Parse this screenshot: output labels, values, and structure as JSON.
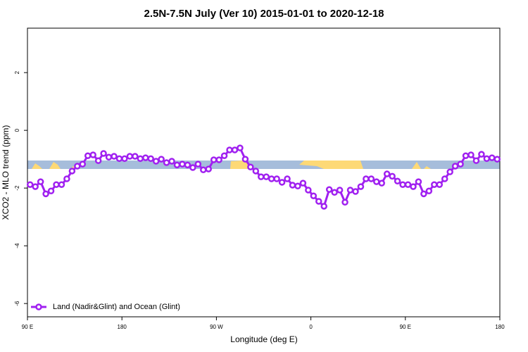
{
  "chart_data": {
    "type": "line",
    "title": "2.5N-7.5N July (Ver 10)   2015-01-01 to 2020-12-18",
    "x_label": "Longitude (deg E)",
    "y_label": "XCO2 - MLO trend (ppm)",
    "xlim": [
      90,
      540
    ],
    "ylim": [
      -6.46,
      3.54
    ],
    "xticks": [
      {
        "value": 90,
        "label": "90 E"
      },
      180,
      {
        "value": 270,
        "label": "90 W"
      },
      {
        "value": 360,
        "label": "0"
      },
      {
        "value": 450,
        "label": "90 E"
      },
      {
        "value": 540,
        "label": "180"
      }
    ],
    "yticks": [
      -6,
      -4,
      -2,
      0,
      2
    ],
    "legend": "bottom-left",
    "series": [
      {
        "name": "Land (Nadir&Glint) and Ocean (Glint)",
        "color": "#a020f0",
        "x": [
          92.5,
          97.5,
          102.5,
          107.5,
          112.5,
          117.5,
          122.5,
          127.5,
          132.5,
          137.5,
          142.5,
          147.5,
          152.5,
          157.5,
          162.5,
          167.5,
          172.5,
          177.5,
          182.5,
          187.5,
          192.5,
          197.5,
          202.5,
          207.5,
          212.5,
          217.5,
          222.5,
          227.5,
          232.5,
          237.5,
          242.5,
          247.5,
          252.5,
          257.5,
          262.5,
          267.5,
          272.5,
          277.5,
          282.5,
          287.5,
          292.5,
          297.5,
          302.5,
          307.5,
          312.5,
          317.5,
          322.5,
          327.5,
          332.5,
          337.5,
          342.5,
          347.5,
          352.5,
          357.5,
          362.5,
          367.5,
          372.5,
          377.5,
          382.5,
          387.5,
          392.5,
          397.5,
          402.5,
          407.5,
          412.5,
          417.5,
          422.5,
          427.5,
          432.5,
          437.5,
          442.5,
          447.5,
          452.5,
          457.5,
          462.5,
          467.5,
          472.5,
          477.5,
          482.5,
          487.5,
          492.5,
          497.5,
          502.5,
          507.5,
          512.5,
          517.5,
          522.5,
          527.5,
          532.5,
          537.5
        ],
        "values": [
          -1.88,
          -1.95,
          -1.78,
          -2.2,
          -2.1,
          -1.88,
          -1.88,
          -1.68,
          -1.41,
          -1.24,
          -1.17,
          -0.88,
          -0.85,
          -1.05,
          -0.8,
          -0.93,
          -0.9,
          -0.98,
          -0.98,
          -0.9,
          -0.9,
          -0.98,
          -0.95,
          -0.98,
          -1.07,
          -1.0,
          -1.12,
          -1.07,
          -1.2,
          -1.17,
          -1.2,
          -1.29,
          -1.17,
          -1.37,
          -1.34,
          -1.02,
          -1.02,
          -0.88,
          -0.68,
          -0.68,
          -0.61,
          -1.0,
          -1.27,
          -1.41,
          -1.61,
          -1.61,
          -1.68,
          -1.68,
          -1.8,
          -1.68,
          -1.9,
          -1.93,
          -1.83,
          -2.07,
          -2.27,
          -2.46,
          -2.63,
          -2.05,
          -2.15,
          -2.07,
          -2.49,
          -2.07,
          -2.12,
          -1.95,
          -1.68,
          -1.68,
          -1.78,
          -1.83,
          -1.51,
          -1.59,
          -1.76,
          -1.88,
          -1.88,
          -1.95,
          -1.78,
          -2.2,
          -2.1,
          -1.88,
          -1.88,
          -1.68,
          -1.44,
          -1.24,
          -1.17,
          -0.88,
          -0.85,
          -1.05,
          -0.83,
          -0.98,
          -0.95,
          -1.0
        ]
      }
    ]
  }
}
